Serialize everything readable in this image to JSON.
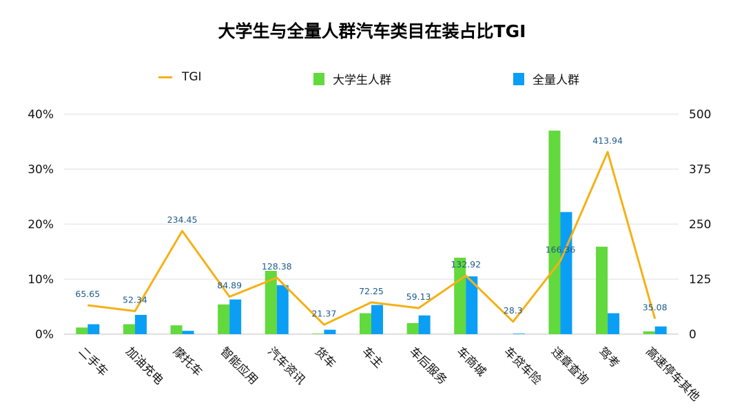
{
  "chart_data": {
    "type": "bar",
    "title": "大学生与全量人群汽车类目在装占比TGI",
    "categories": [
      "二手车",
      "加油充电",
      "摩托车",
      "智能应用",
      "汽车资讯",
      "货车",
      "车主",
      "车后服务",
      "车商城",
      "车贷车险",
      "违章查询",
      "驾考",
      "高速停车其他"
    ],
    "series": [
      {
        "name": "大学生人群",
        "axis": "left",
        "color": "#62D93C",
        "values": [
          1.2,
          1.8,
          1.6,
          5.4,
          11.5,
          0.1,
          3.8,
          2.0,
          13.9,
          0.0,
          37.0,
          15.9,
          0.5
        ]
      },
      {
        "name": "全量人群",
        "axis": "left",
        "color": "#0A9FF5",
        "values": [
          1.8,
          3.5,
          0.6,
          6.3,
          8.9,
          0.8,
          5.3,
          3.4,
          10.5,
          0.1,
          22.2,
          3.8,
          1.4
        ]
      },
      {
        "name": "TGI",
        "axis": "right",
        "type": "line",
        "color": "#F5B014",
        "values": [
          65.65,
          52.34,
          234.45,
          84.89,
          128.38,
          21.37,
          72.25,
          59.13,
          132.92,
          28.3,
          166.36,
          413.94,
          35.08
        ]
      }
    ],
    "data_labels": [
      "65.65",
      "52.34",
      "234.45",
      "84.89",
      "128.38",
      "21.37",
      "72.25",
      "59.13",
      "132.92",
      "28.3",
      "166.36",
      "413.94",
      "35.08"
    ],
    "y_left": {
      "ticks": [
        "0%",
        "10%",
        "20%",
        "30%",
        "40%"
      ],
      "min": 0,
      "max": 40
    },
    "y_right": {
      "ticks": [
        "0",
        "125",
        "250",
        "375",
        "500"
      ],
      "min": 0,
      "max": 500
    },
    "grid": true,
    "legend_position": "top",
    "label_color": "#1B5A8C"
  }
}
